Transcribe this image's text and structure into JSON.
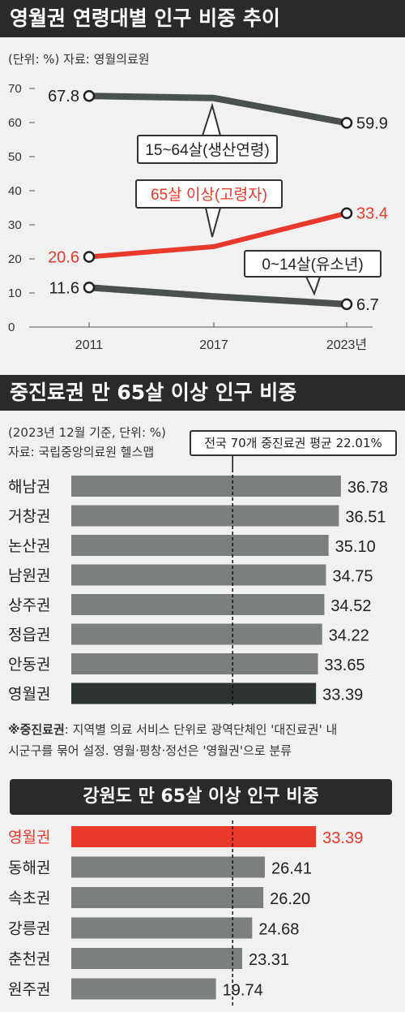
{
  "section1": {
    "title": "영월권 연령대별 인구 비중 추이",
    "meta": "(단위: %) 자료: 영월의료원"
  },
  "section2": {
    "title": "중진료권 만 65살 이상 인구 비중",
    "meta1": "(2023년 12월 기준, 단위: %)",
    "meta2": "자료: 국립중앙의료원 헬스맵",
    "note_bold": "※중진료권",
    "note_rest": ": 지역별 의료 서비스 단위로 광역단체인 '대진료권' 내",
    "note_line2": "시군구를 묶어 설정. 영월·평창·정선은 '영월권'으로 분류"
  },
  "section3": {
    "title": "강원도 만 65살 이상 인구 비중"
  },
  "colors": {
    "dark": "#2a2a2a",
    "gray_line": "#4a4f4f",
    "red": "#e8392a",
    "bar_gray": "#7b7f80",
    "bar_dark": "#2e3333"
  },
  "chart_data": [
    {
      "type": "line",
      "x": [
        "2011",
        "2017",
        "2023년"
      ],
      "ylim": [
        0,
        70
      ],
      "yticks": [
        0,
        10,
        20,
        30,
        40,
        50,
        60,
        70
      ],
      "grid": false,
      "series": [
        {
          "name": "15~64살(생산연령)",
          "values": [
            67.8,
            67.2,
            59.9
          ],
          "end_labels": [
            "67.8",
            "59.9"
          ],
          "color": "#4a4f4f"
        },
        {
          "name": "65살 이상(고령자)",
          "values": [
            20.6,
            23.6,
            33.4
          ],
          "end_labels": [
            "20.6",
            "33.4"
          ],
          "color": "#e8392a"
        },
        {
          "name": "0~14살(유소년)",
          "values": [
            11.6,
            9.0,
            6.7
          ],
          "end_labels": [
            "11.6",
            "6.7"
          ],
          "color": "#4a4f4f"
        }
      ]
    },
    {
      "type": "bar",
      "orientation": "horizontal",
      "categories": [
        "해남권",
        "거창권",
        "논산권",
        "남원권",
        "상주권",
        "정읍권",
        "안동권",
        "영월권"
      ],
      "values": [
        36.78,
        36.51,
        35.1,
        34.75,
        34.52,
        34.22,
        33.65,
        33.39
      ],
      "value_labels": [
        "36.78",
        "36.51",
        "35.10",
        "34.75",
        "34.52",
        "34.22",
        "33.65",
        "33.39"
      ],
      "highlight": "영월권",
      "reference_line": {
        "label": "전국 70개 중진료권 평균 22.01%",
        "value": 22.01
      }
    },
    {
      "type": "bar",
      "orientation": "horizontal",
      "categories": [
        "영월권",
        "동해권",
        "속초권",
        "강릉권",
        "춘천권",
        "원주권"
      ],
      "values": [
        33.39,
        26.41,
        26.2,
        24.68,
        23.31,
        19.74
      ],
      "value_labels": [
        "33.39",
        "26.41",
        "26.20",
        "24.68",
        "23.31",
        "19.74"
      ],
      "highlight": "영월권",
      "reference_line": {
        "value": 22.01
      }
    }
  ]
}
